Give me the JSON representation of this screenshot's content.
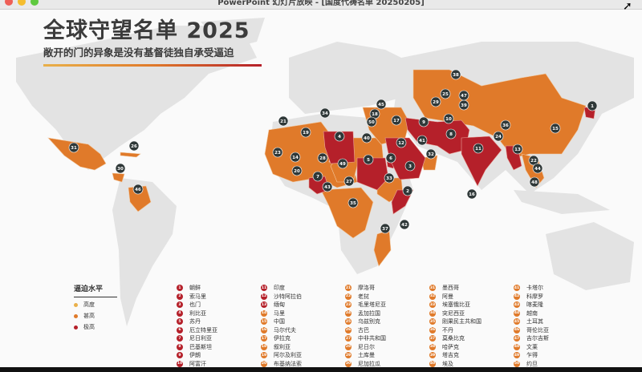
{
  "window": {
    "title": "PowerPoint 幻灯片放映 - [国度代祷名单 20250205]"
  },
  "slide": {
    "title": "全球守望名单 2025",
    "subtitle": "敞开的门的异象是没有基督徒独自承受逼迫",
    "legend": {
      "title": "逼迫水平",
      "items": [
        {
          "label": "高度",
          "color": "#e9b04a"
        },
        {
          "label": "甚高",
          "color": "#e07a2a"
        },
        {
          "label": "极高",
          "color": "#b5202a"
        }
      ]
    },
    "countries": [
      {
        "rank": 1,
        "name": "朝鲜",
        "level": "极高"
      },
      {
        "rank": 2,
        "name": "索马里",
        "level": "极高"
      },
      {
        "rank": 3,
        "name": "也门",
        "level": "极高"
      },
      {
        "rank": 4,
        "name": "利比亚",
        "level": "极高"
      },
      {
        "rank": 5,
        "name": "苏丹",
        "level": "极高"
      },
      {
        "rank": 6,
        "name": "厄立特里亚",
        "level": "极高"
      },
      {
        "rank": 7,
        "name": "尼日利亚",
        "level": "极高"
      },
      {
        "rank": 8,
        "name": "巴基斯坦",
        "level": "极高"
      },
      {
        "rank": 9,
        "name": "伊朗",
        "level": "极高"
      },
      {
        "rank": 10,
        "name": "阿富汗",
        "level": "极高"
      },
      {
        "rank": 11,
        "name": "印度",
        "level": "极高"
      },
      {
        "rank": 12,
        "name": "沙特阿拉伯",
        "level": "极高"
      },
      {
        "rank": 13,
        "name": "缅甸",
        "level": "极高"
      },
      {
        "rank": 14,
        "name": "马里",
        "level": "甚高"
      },
      {
        "rank": 15,
        "name": "中国",
        "level": "甚高"
      },
      {
        "rank": 16,
        "name": "马尔代夫",
        "level": "甚高"
      },
      {
        "rank": 17,
        "name": "伊拉克",
        "level": "甚高"
      },
      {
        "rank": 18,
        "name": "叙利亚",
        "level": "甚高"
      },
      {
        "rank": 19,
        "name": "阿尔及利亚",
        "level": "甚高"
      },
      {
        "rank": 20,
        "name": "布基纳法索",
        "level": "甚高"
      },
      {
        "rank": 21,
        "name": "摩洛哥",
        "level": "甚高"
      },
      {
        "rank": 22,
        "name": "老挝",
        "level": "甚高"
      },
      {
        "rank": 23,
        "name": "毛里塔尼亚",
        "level": "甚高"
      },
      {
        "rank": 24,
        "name": "孟加拉国",
        "level": "甚高"
      },
      {
        "rank": 25,
        "name": "乌兹别克",
        "level": "甚高"
      },
      {
        "rank": 26,
        "name": "古巴",
        "level": "甚高"
      },
      {
        "rank": 27,
        "name": "中非共和国",
        "level": "甚高"
      },
      {
        "rank": 28,
        "name": "尼日尔",
        "level": "甚高"
      },
      {
        "rank": 29,
        "name": "土库曼",
        "level": "甚高"
      },
      {
        "rank": 30,
        "name": "尼加拉瓜",
        "level": "甚高"
      },
      {
        "rank": 31,
        "name": "墨西哥",
        "level": "甚高"
      },
      {
        "rank": 32,
        "name": "阿曼",
        "level": "甚高"
      },
      {
        "rank": 33,
        "name": "埃塞俄比亚",
        "level": "甚高"
      },
      {
        "rank": 34,
        "name": "突尼西亚",
        "level": "甚高"
      },
      {
        "rank": 35,
        "name": "刚果民主共和国",
        "level": "甚高"
      },
      {
        "rank": 36,
        "name": "不丹",
        "level": "甚高"
      },
      {
        "rank": 37,
        "name": "莫桑比克",
        "level": "甚高"
      },
      {
        "rank": 38,
        "name": "哈萨克",
        "level": "甚高"
      },
      {
        "rank": 39,
        "name": "塔吉克",
        "level": "甚高"
      },
      {
        "rank": 40,
        "name": "埃及",
        "level": "甚高"
      },
      {
        "rank": 41,
        "name": "卡塔尔",
        "level": "甚高"
      },
      {
        "rank": 42,
        "name": "科摩罗",
        "level": "甚高"
      },
      {
        "rank": 43,
        "name": "喀麦隆",
        "level": "甚高"
      },
      {
        "rank": 44,
        "name": "越南",
        "level": "甚高"
      },
      {
        "rank": 45,
        "name": "土耳其",
        "level": "甚高"
      },
      {
        "rank": 46,
        "name": "哥伦比亚",
        "level": "甚高"
      },
      {
        "rank": 47,
        "name": "吉尔吉斯",
        "level": "甚高"
      },
      {
        "rank": 48,
        "name": "文莱",
        "level": "甚高"
      },
      {
        "rank": 49,
        "name": "乍得",
        "level": "甚高"
      },
      {
        "rank": 50,
        "name": "约旦",
        "level": "甚高"
      }
    ]
  },
  "colors": {
    "very_high": "#e07a2a",
    "extreme": "#b5202a",
    "high": "#e9b04a",
    "marker": "#2f3838",
    "land": "#e3e3e3",
    "ocean": "#fafafa"
  }
}
